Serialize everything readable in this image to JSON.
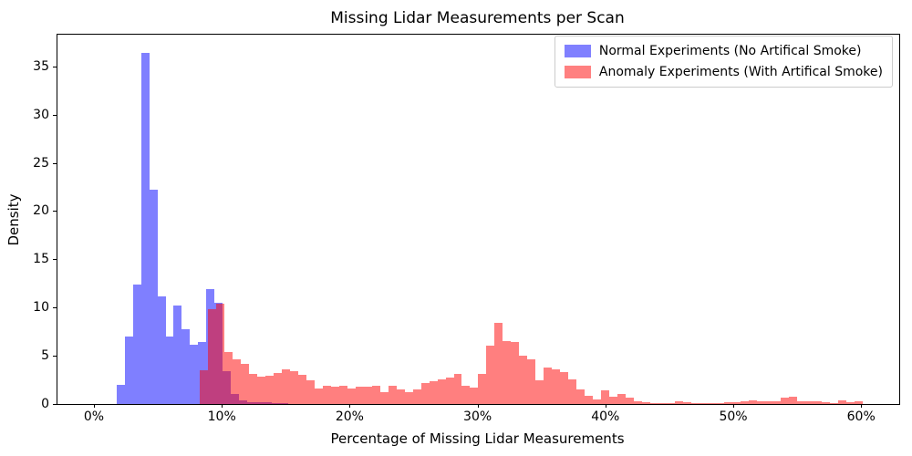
{
  "title": "Missing Lidar Measurements per Scan",
  "axes": {
    "xlabel": "Percentage of Missing Lidar Measurements",
    "ylabel": "Density",
    "xticks": [
      {
        "pct": 0,
        "label": "0%"
      },
      {
        "pct": 10,
        "label": "10%"
      },
      {
        "pct": 20,
        "label": "20%"
      },
      {
        "pct": 30,
        "label": "30%"
      },
      {
        "pct": 40,
        "label": "40%"
      },
      {
        "pct": 50,
        "label": "50%"
      },
      {
        "pct": 60,
        "label": "60%"
      }
    ],
    "yticks": [
      0,
      5,
      10,
      15,
      20,
      25,
      30,
      35
    ],
    "grid": false
  },
  "legend": {
    "position": "upper right",
    "items": [
      {
        "label": "Normal Experiments (No Artifical Smoke)",
        "color": "rgba(0,0,255,0.5)",
        "swatch": "#8080ff"
      },
      {
        "label": "Anomaly Experiments (With Artifical Smoke)",
        "color": "rgba(255,0,0,0.5)",
        "swatch": "#ff8080"
      }
    ]
  },
  "chart_data": {
    "type": "bar",
    "subtype": "overlapping density histograms, alpha 0.5",
    "title": "Missing Lidar Measurements per Scan",
    "xlabel": "Percentage of Missing Lidar Measurements",
    "ylabel": "Density",
    "xlim_pct": [
      -2.9,
      62.9
    ],
    "ylim": [
      0,
      38.4
    ],
    "bin_width_pct": 0.64,
    "series": [
      {
        "name": "Normal Experiments (No Artifical Smoke)",
        "slug": "normal",
        "color": "rgba(0,0,255,0.5)",
        "first_bin_start_pct": 1.76,
        "densities": [
          2.0,
          7.0,
          12.4,
          36.5,
          22.3,
          11.2,
          7.0,
          10.2,
          7.8,
          6.2,
          6.4,
          11.9,
          10.5,
          3.45,
          1.0,
          0.4,
          0.2,
          0.15,
          0.15,
          0.1,
          0.1
        ]
      },
      {
        "name": "Anomaly Experiments (With Artifical Smoke)",
        "slug": "anomaly",
        "color": "rgba(255,0,0,0.5)",
        "first_bin_start_pct": 8.3,
        "densities": [
          3.5,
          9.9,
          10.4,
          5.4,
          4.6,
          4.2,
          3.1,
          2.8,
          2.9,
          3.2,
          3.6,
          3.4,
          3.0,
          2.45,
          1.65,
          1.9,
          1.8,
          1.9,
          1.65,
          1.8,
          1.8,
          1.9,
          1.25,
          1.9,
          1.5,
          1.25,
          1.55,
          2.2,
          2.4,
          2.6,
          2.75,
          3.1,
          1.9,
          1.75,
          3.1,
          6.1,
          8.4,
          6.5,
          6.4,
          5.0,
          4.6,
          2.5,
          3.8,
          3.6,
          3.3,
          2.6,
          1.5,
          0.9,
          0.5,
          1.4,
          0.8,
          1.0,
          0.7,
          0.3,
          0.15,
          0.1,
          0.1,
          0.1,
          0.25,
          0.15,
          0.1,
          0.05,
          0.05,
          0.1,
          0.15,
          0.2,
          0.3,
          0.35,
          0.3,
          0.25,
          0.3,
          0.7,
          0.8,
          0.3,
          0.3,
          0.25,
          0.2,
          0.05,
          0.4,
          0.2,
          0.33
        ]
      }
    ]
  }
}
